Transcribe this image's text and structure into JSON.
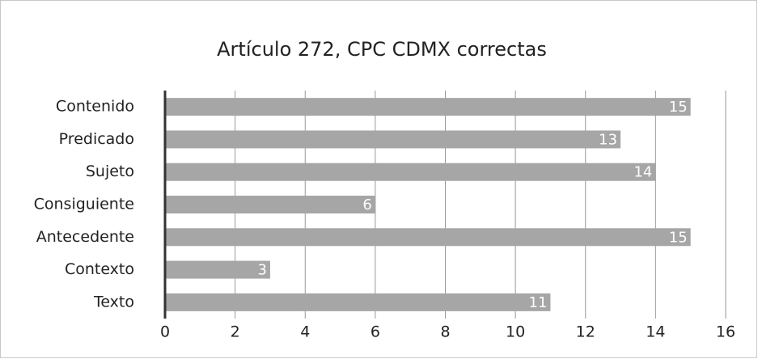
{
  "chart_data": {
    "type": "barh",
    "title": "Artículo 272, CPC CDMX correctas",
    "categories": [
      "Contenido",
      "Predicado",
      "Sujeto",
      "Consiguiente",
      "Antecedente",
      "Contexto",
      "Texto"
    ],
    "values": [
      15,
      13,
      14,
      6,
      15,
      3,
      11
    ],
    "color": "#a6a6a6",
    "xlim": [
      0,
      16
    ],
    "xticks": [
      0,
      2,
      4,
      6,
      8,
      10,
      12,
      14,
      16
    ],
    "grid": true
  }
}
